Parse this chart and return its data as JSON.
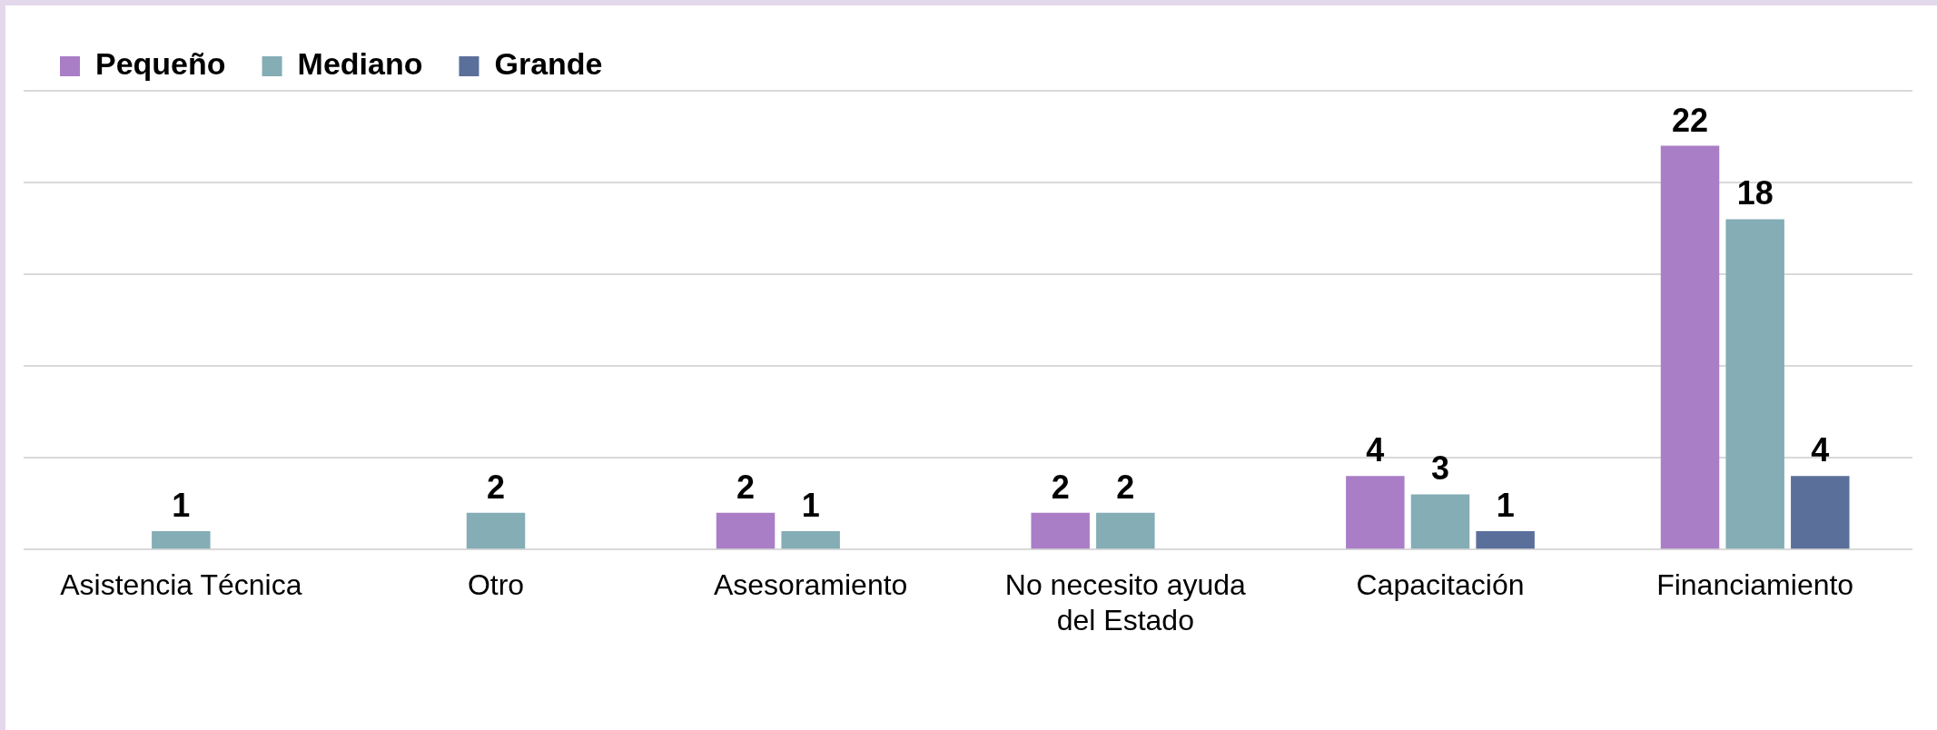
{
  "chart_data": {
    "type": "bar",
    "categories": [
      "Asistencia Técnica",
      "Otro",
      "Asesoramiento",
      "No necesito ayuda del Estado",
      "Capacitación",
      "Financiamiento"
    ],
    "series": [
      {
        "name": "Pequeño",
        "color": "#a97ec6",
        "values": [
          null,
          null,
          2,
          2,
          4,
          22
        ]
      },
      {
        "name": "Mediano",
        "color": "#84adb5",
        "values": [
          1,
          2,
          1,
          2,
          3,
          18
        ]
      },
      {
        "name": "Grande",
        "color": "#5b6f9b",
        "values": [
          null,
          null,
          null,
          null,
          1,
          4
        ]
      }
    ],
    "ylim": [
      0,
      25
    ],
    "yticks": [
      0,
      5,
      10,
      15,
      20,
      25
    ],
    "grid": "y",
    "tick_labels": "x",
    "legend": "top left",
    "data_labels": true
  }
}
